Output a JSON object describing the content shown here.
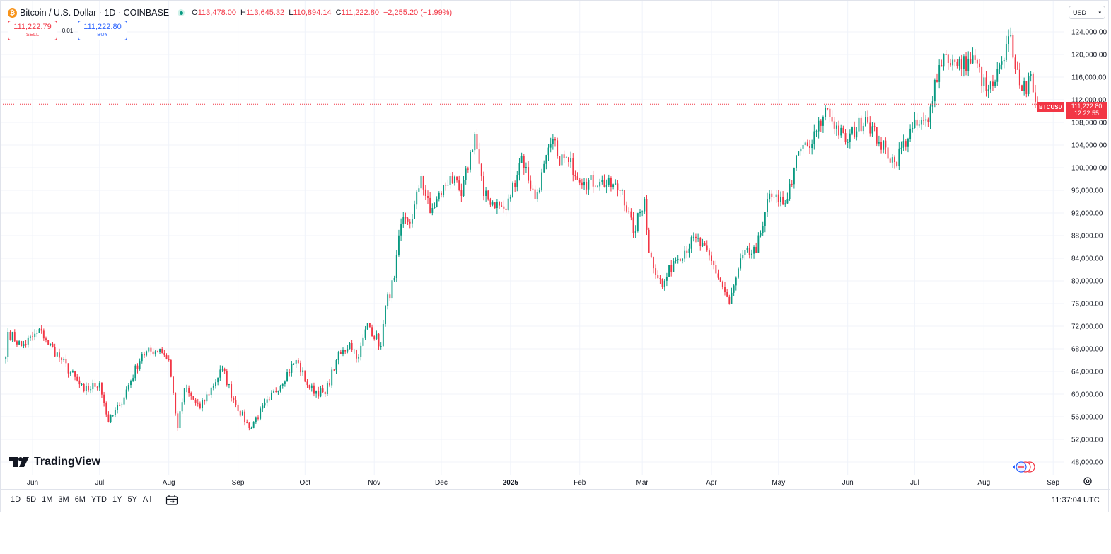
{
  "legend": {
    "coin_glyph": "₿",
    "title": "Bitcoin / U.S. Dollar · 1D · COINBASE",
    "open_key": "O",
    "open": "113,478.00",
    "high_key": "H",
    "high": "113,645.32",
    "low_key": "L",
    "low": "110,894.14",
    "close_key": "C",
    "close": "111,222.80",
    "change": "−2,255.20 (−1.99%)"
  },
  "trade": {
    "sell_price": "111,222.79",
    "sell_label": "SELL",
    "spread": "0.01",
    "buy_price": "111,222.80",
    "buy_label": "BUY"
  },
  "currency": "USD",
  "price_tag": {
    "symbol": "BTCUSD",
    "price": "111,222.80",
    "countdown": "12:22:55"
  },
  "branding": "TradingView",
  "periods": [
    "1D",
    "5D",
    "1M",
    "3M",
    "6M",
    "YTD",
    "1Y",
    "5Y",
    "All"
  ],
  "clock": "11:37:04 UTC",
  "colors": {
    "up": "#089981",
    "down": "#f23645",
    "grid": "#f0f3fa",
    "text": "#131722"
  },
  "chart_data": {
    "type": "candlestick",
    "symbol": "BTCUSD",
    "interval": "1D",
    "ylim": [
      46000,
      126000
    ],
    "y_ticks": [
      "124,000.00",
      "120,000.00",
      "116,000.00",
      "112,000.00",
      "108,000.00",
      "104,000.00",
      "100,000.00",
      "96,000.00",
      "92,000.00",
      "88,000.00",
      "84,000.00",
      "80,000.00",
      "76,000.00",
      "72,000.00",
      "68,000.00",
      "64,000.00",
      "60,000.00",
      "56,000.00",
      "52,000.00",
      "48,000.00"
    ],
    "x_ticks": [
      "Jun",
      "Jul",
      "Aug",
      "Sep",
      "Oct",
      "Nov",
      "Dec",
      "2025",
      "Feb",
      "Mar",
      "Apr",
      "May",
      "Jun",
      "Jul",
      "Aug",
      "Sep"
    ],
    "last_price": 111222.8,
    "close_anchors": [
      [
        "2024-05-20",
        66500
      ],
      [
        "2024-05-21",
        71000
      ],
      [
        "2024-05-27",
        68500
      ],
      [
        "2024-06-05",
        71200
      ],
      [
        "2024-06-07",
        69500
      ],
      [
        "2024-06-14",
        66000
      ],
      [
        "2024-06-24",
        60500
      ],
      [
        "2024-07-01",
        62000
      ],
      [
        "2024-07-05",
        55000
      ],
      [
        "2024-07-10",
        58000
      ],
      [
        "2024-07-20",
        67000
      ],
      [
        "2024-07-28",
        68000
      ],
      [
        "2024-08-01",
        66000
      ],
      [
        "2024-08-05",
        54000
      ],
      [
        "2024-08-08",
        61000
      ],
      [
        "2024-08-15",
        57500
      ],
      [
        "2024-08-25",
        64500
      ],
      [
        "2024-08-30",
        59000
      ],
      [
        "2024-09-06",
        54000
      ],
      [
        "2024-09-15",
        59000
      ],
      [
        "2024-09-27",
        66000
      ],
      [
        "2024-10-03",
        61000
      ],
      [
        "2024-10-10",
        60000
      ],
      [
        "2024-10-15",
        66000
      ],
      [
        "2024-10-21",
        69000
      ],
      [
        "2024-10-25",
        66500
      ],
      [
        "2024-10-29",
        72500
      ],
      [
        "2024-11-04",
        68500
      ],
      [
        "2024-11-06",
        75500
      ],
      [
        "2024-11-10",
        80500
      ],
      [
        "2024-11-13",
        90000
      ],
      [
        "2024-11-18",
        91000
      ],
      [
        "2024-11-22",
        98500
      ],
      [
        "2024-11-26",
        92000
      ],
      [
        "2024-12-05",
        98500
      ],
      [
        "2024-12-10",
        95000
      ],
      [
        "2024-12-16",
        106000
      ],
      [
        "2024-12-20",
        95000
      ],
      [
        "2024-12-30",
        92500
      ],
      [
        "2025-01-06",
        102000
      ],
      [
        "2025-01-12",
        94500
      ],
      [
        "2025-01-20",
        105000
      ],
      [
        "2025-01-22",
        102000
      ],
      [
        "2025-01-27",
        101000
      ],
      [
        "2025-02-03",
        97500
      ],
      [
        "2025-02-10",
        97500
      ],
      [
        "2025-02-20",
        96000
      ],
      [
        "2025-02-25",
        88500
      ],
      [
        "2025-03-02",
        94500
      ],
      [
        "2025-03-04",
        85000
      ],
      [
        "2025-03-10",
        79000
      ],
      [
        "2025-03-15",
        83500
      ],
      [
        "2025-03-25",
        87500
      ],
      [
        "2025-04-01",
        83500
      ],
      [
        "2025-04-07",
        78000
      ],
      [
        "2025-04-09",
        76000
      ],
      [
        "2025-04-15",
        84500
      ],
      [
        "2025-04-21",
        85000
      ],
      [
        "2025-04-26",
        94500
      ],
      [
        "2025-05-01",
        94000
      ],
      [
        "2025-05-05",
        94500
      ],
      [
        "2025-05-08",
        100000
      ],
      [
        "2025-05-12",
        104000
      ],
      [
        "2025-05-15",
        103500
      ],
      [
        "2025-05-21",
        109000
      ],
      [
        "2025-05-22",
        110500
      ],
      [
        "2025-05-31",
        104500
      ],
      [
        "2025-06-09",
        109000
      ],
      [
        "2025-06-15",
        104500
      ],
      [
        "2025-06-22",
        101000
      ],
      [
        "2025-06-30",
        107000
      ],
      [
        "2025-07-07",
        108000
      ],
      [
        "2025-07-10",
        115500
      ],
      [
        "2025-07-14",
        120000
      ],
      [
        "2025-07-20",
        118000
      ],
      [
        "2025-07-28",
        119000
      ],
      [
        "2025-08-02",
        113500
      ],
      [
        "2025-08-05",
        114500
      ],
      [
        "2025-08-10",
        119000
      ],
      [
        "2025-08-13",
        123500
      ],
      [
        "2025-08-15",
        117500
      ],
      [
        "2025-08-20",
        113000
      ],
      [
        "2025-08-22",
        116500
      ],
      [
        "2025-08-25",
        111222.8
      ]
    ]
  }
}
